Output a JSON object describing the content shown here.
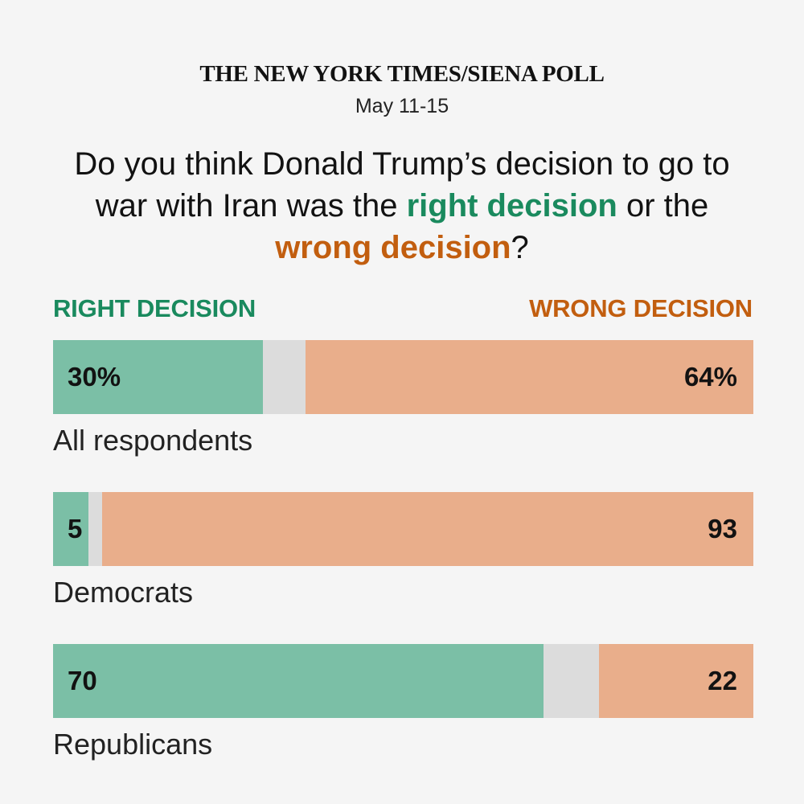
{
  "header": {
    "title": "THE NEW YORK TIMES/SIENA POLL",
    "date": "May 11-15"
  },
  "question": {
    "part1": "Do you think Donald Trump’s decision to go to war with Iran was the ",
    "right_text": "right decision",
    "part2": " or the ",
    "wrong_text": "wrong decision",
    "part3": "?"
  },
  "colors": {
    "right": "#7bbfa6",
    "right_text": "#1a8a5e",
    "other": "#dcdcdc",
    "wrong": "#e9ae8b",
    "wrong_text": "#c25e0f",
    "background": "#f5f5f5"
  },
  "chart_data": {
    "type": "bar",
    "orientation": "horizontal",
    "stacked": true,
    "legend": {
      "right_label": "RIGHT DECISION",
      "wrong_label": "WRONG DECISION"
    },
    "series": [
      {
        "name": "RIGHT DECISION",
        "values": [
          30,
          5,
          70
        ]
      },
      {
        "name": "WRONG DECISION",
        "values": [
          64,
          93,
          22
        ]
      }
    ],
    "categories": [
      "All respondents",
      "Democrats",
      "Republicans"
    ],
    "rows": [
      {
        "category": "All respondents",
        "right": 30,
        "wrong": 64,
        "right_label": "30%",
        "wrong_label": "64%"
      },
      {
        "category": "Democrats",
        "right": 5,
        "wrong": 93,
        "right_label": "5",
        "wrong_label": "93"
      },
      {
        "category": "Republicans",
        "right": 70,
        "wrong": 22,
        "right_label": "70",
        "wrong_label": "22"
      }
    ]
  }
}
